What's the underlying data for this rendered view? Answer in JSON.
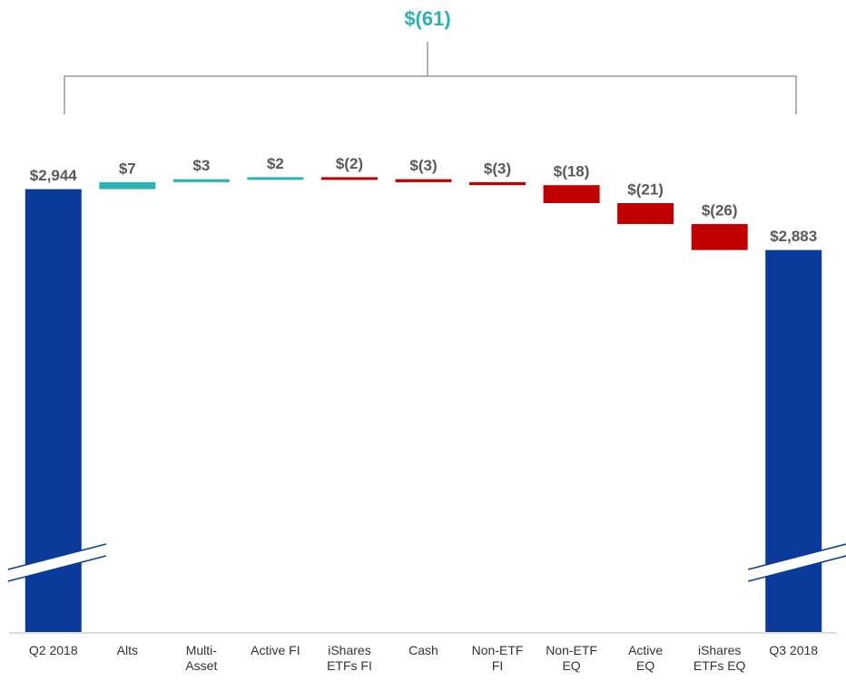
{
  "chart_data": {
    "type": "waterfall",
    "annotation": "$(61)",
    "categories": [
      "Q2 2018",
      "Alts",
      "Multi-\nAsset",
      "Active FI",
      "iShares\nETFs FI",
      "Cash",
      "Non-ETF\nFI",
      "Non-ETF\nEQ",
      "Active\nEQ",
      "iShares\nETFs EQ",
      "Q3 2018"
    ],
    "values": [
      2944,
      7,
      3,
      2,
      -2,
      -3,
      -3,
      -18,
      -21,
      -26,
      2883
    ],
    "value_labels": [
      "$2,944",
      "$7",
      "$3",
      "$2",
      "$(2)",
      "$(3)",
      "$(3)",
      "$(18)",
      "$(21)",
      "$(26)",
      "$2,883"
    ],
    "colors": {
      "total": "#0a3a9a",
      "increase": "#2bb3b3",
      "decrease": "#c00000"
    },
    "ylim": [
      2500,
      3000
    ]
  }
}
